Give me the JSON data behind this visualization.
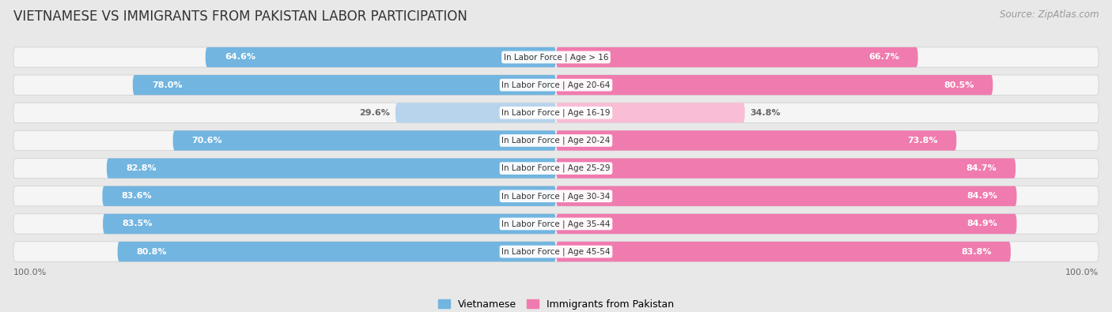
{
  "title": "VIETNAMESE VS IMMIGRANTS FROM PAKISTAN LABOR PARTICIPATION",
  "source": "Source: ZipAtlas.com",
  "categories": [
    "In Labor Force | Age > 16",
    "In Labor Force | Age 20-64",
    "In Labor Force | Age 16-19",
    "In Labor Force | Age 20-24",
    "In Labor Force | Age 25-29",
    "In Labor Force | Age 30-34",
    "In Labor Force | Age 35-44",
    "In Labor Force | Age 45-54"
  ],
  "vietnamese": [
    64.6,
    78.0,
    29.6,
    70.6,
    82.8,
    83.6,
    83.5,
    80.8
  ],
  "pakistan": [
    66.7,
    80.5,
    34.8,
    73.8,
    84.7,
    84.9,
    84.9,
    83.8
  ],
  "vietnamese_color": "#72B5E0",
  "pakistan_color": "#F07BAE",
  "vietnamese_light_color": "#B8D4EC",
  "pakistan_light_color": "#F9BDD6",
  "background_color": "#e8e8e8",
  "row_bg_color": "#f5f5f5",
  "label_color_white": "#ffffff",
  "label_color_dark": "#666666",
  "legend_vietnamese": "Vietnamese",
  "legend_pakistan": "Immigrants from Pakistan",
  "max_value": 100.0,
  "title_fontsize": 12,
  "source_fontsize": 8.5,
  "bar_label_fontsize": 8,
  "category_fontsize": 7.5,
  "legend_fontsize": 9,
  "axis_label_fontsize": 8,
  "small_threshold": 45
}
